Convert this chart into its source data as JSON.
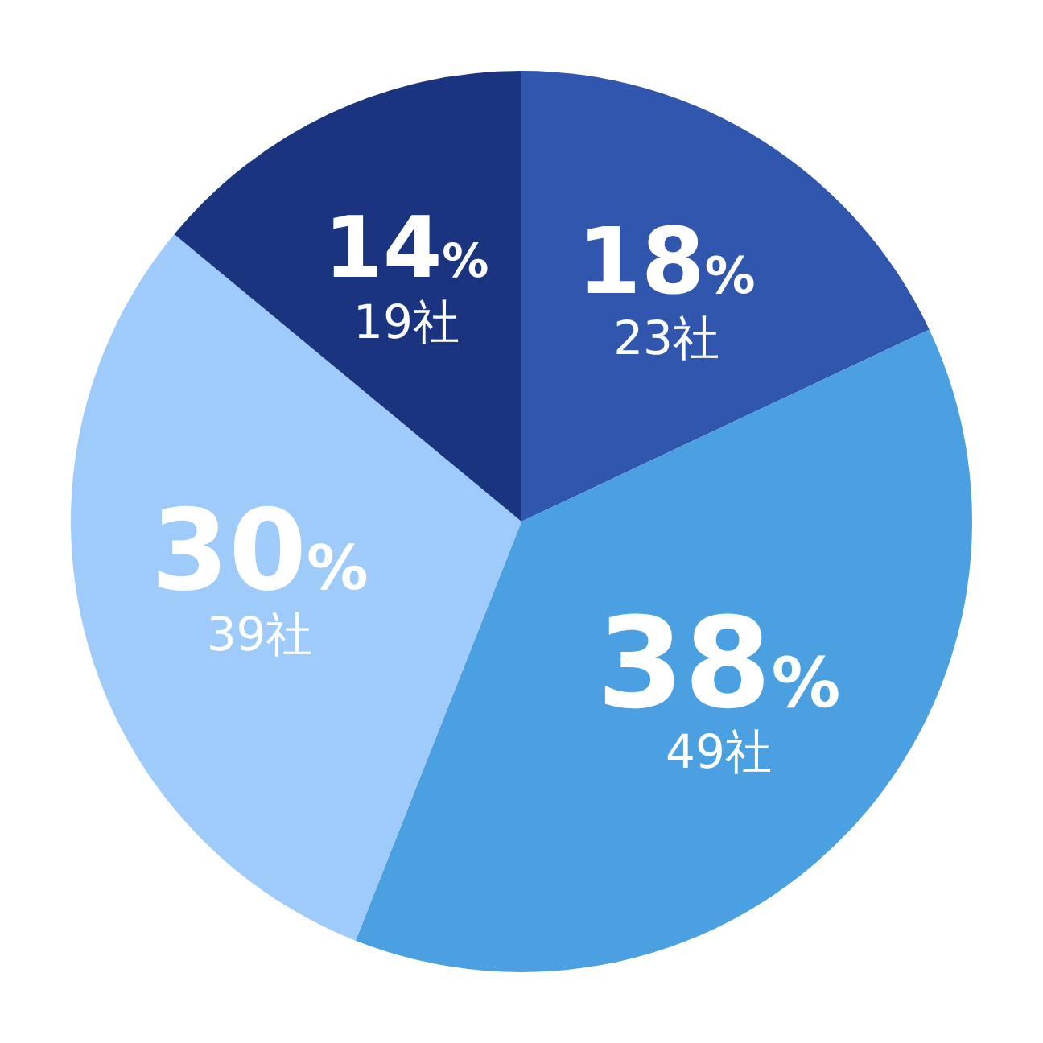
{
  "chart_data": {
    "type": "pie",
    "categories": [
      "23社",
      "49社",
      "39社",
      "19社"
    ],
    "values": [
      18,
      38,
      30,
      14
    ],
    "value_labels": [
      "18%",
      "38%",
      "30%",
      "14%"
    ],
    "colors": [
      "#3056ad",
      "#4aa0e0",
      "#9fcbfb",
      "#1a347f"
    ]
  }
}
